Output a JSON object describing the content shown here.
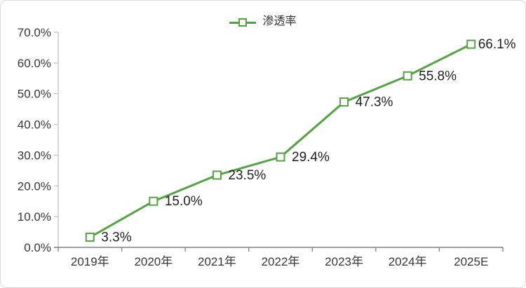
{
  "chart_data": {
    "type": "line",
    "title": "",
    "legend": "渗透率",
    "legend_position": "top-center",
    "categories": [
      "2019年",
      "2020年",
      "2021年",
      "2022年",
      "2023年",
      "2024年",
      "2025E"
    ],
    "values": [
      3.3,
      15.0,
      23.5,
      29.4,
      47.3,
      55.8,
      66.1
    ],
    "data_labels": [
      "3.3%",
      "15.0%",
      "23.5%",
      "29.4%",
      "47.3%",
      "55.8%",
      "66.1%"
    ],
    "y_tick_labels": [
      "0.0%",
      "10.0%",
      "20.0%",
      "30.0%",
      "40.0%",
      "50.0%",
      "60.0%",
      "70.0%"
    ],
    "y_tick_values": [
      0,
      10,
      20,
      30,
      40,
      50,
      60,
      70
    ],
    "ylim": [
      0,
      70
    ],
    "grid": false,
    "colors": {
      "series_line": "#56a345",
      "marker_fill": "#fdfdfb",
      "x_axis": "#808080",
      "y_axis": "#c2c2c2",
      "axis_text": "#383838",
      "data_label_text": "#1f1f1f",
      "card_border": "#d9d9d9"
    }
  }
}
